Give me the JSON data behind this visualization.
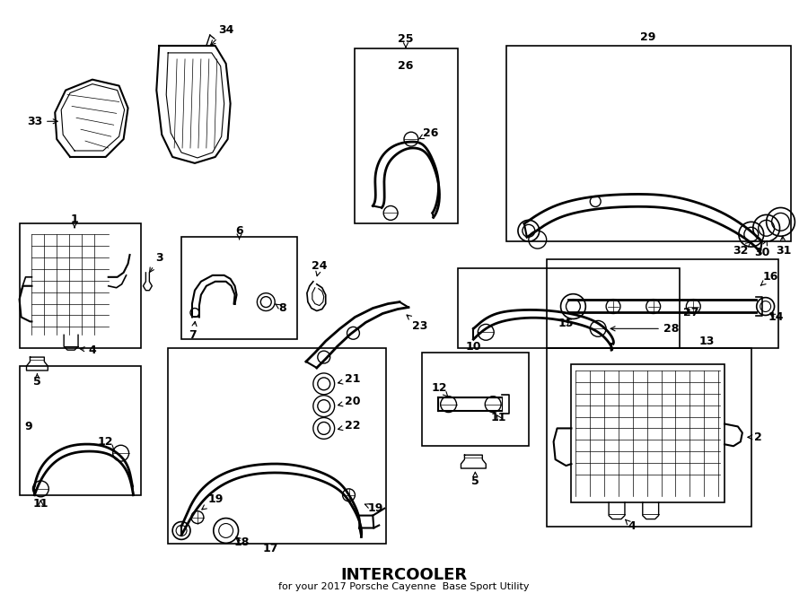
{
  "bg_color": "#ffffff",
  "line_color": "#000000",
  "text_color": "#000000",
  "fig_width": 9.0,
  "fig_height": 6.61,
  "dpi": 100,
  "title": "INTERCOOLER",
  "subtitle": "for your 2017 Porsche Cayenne  Base Sport Utility"
}
